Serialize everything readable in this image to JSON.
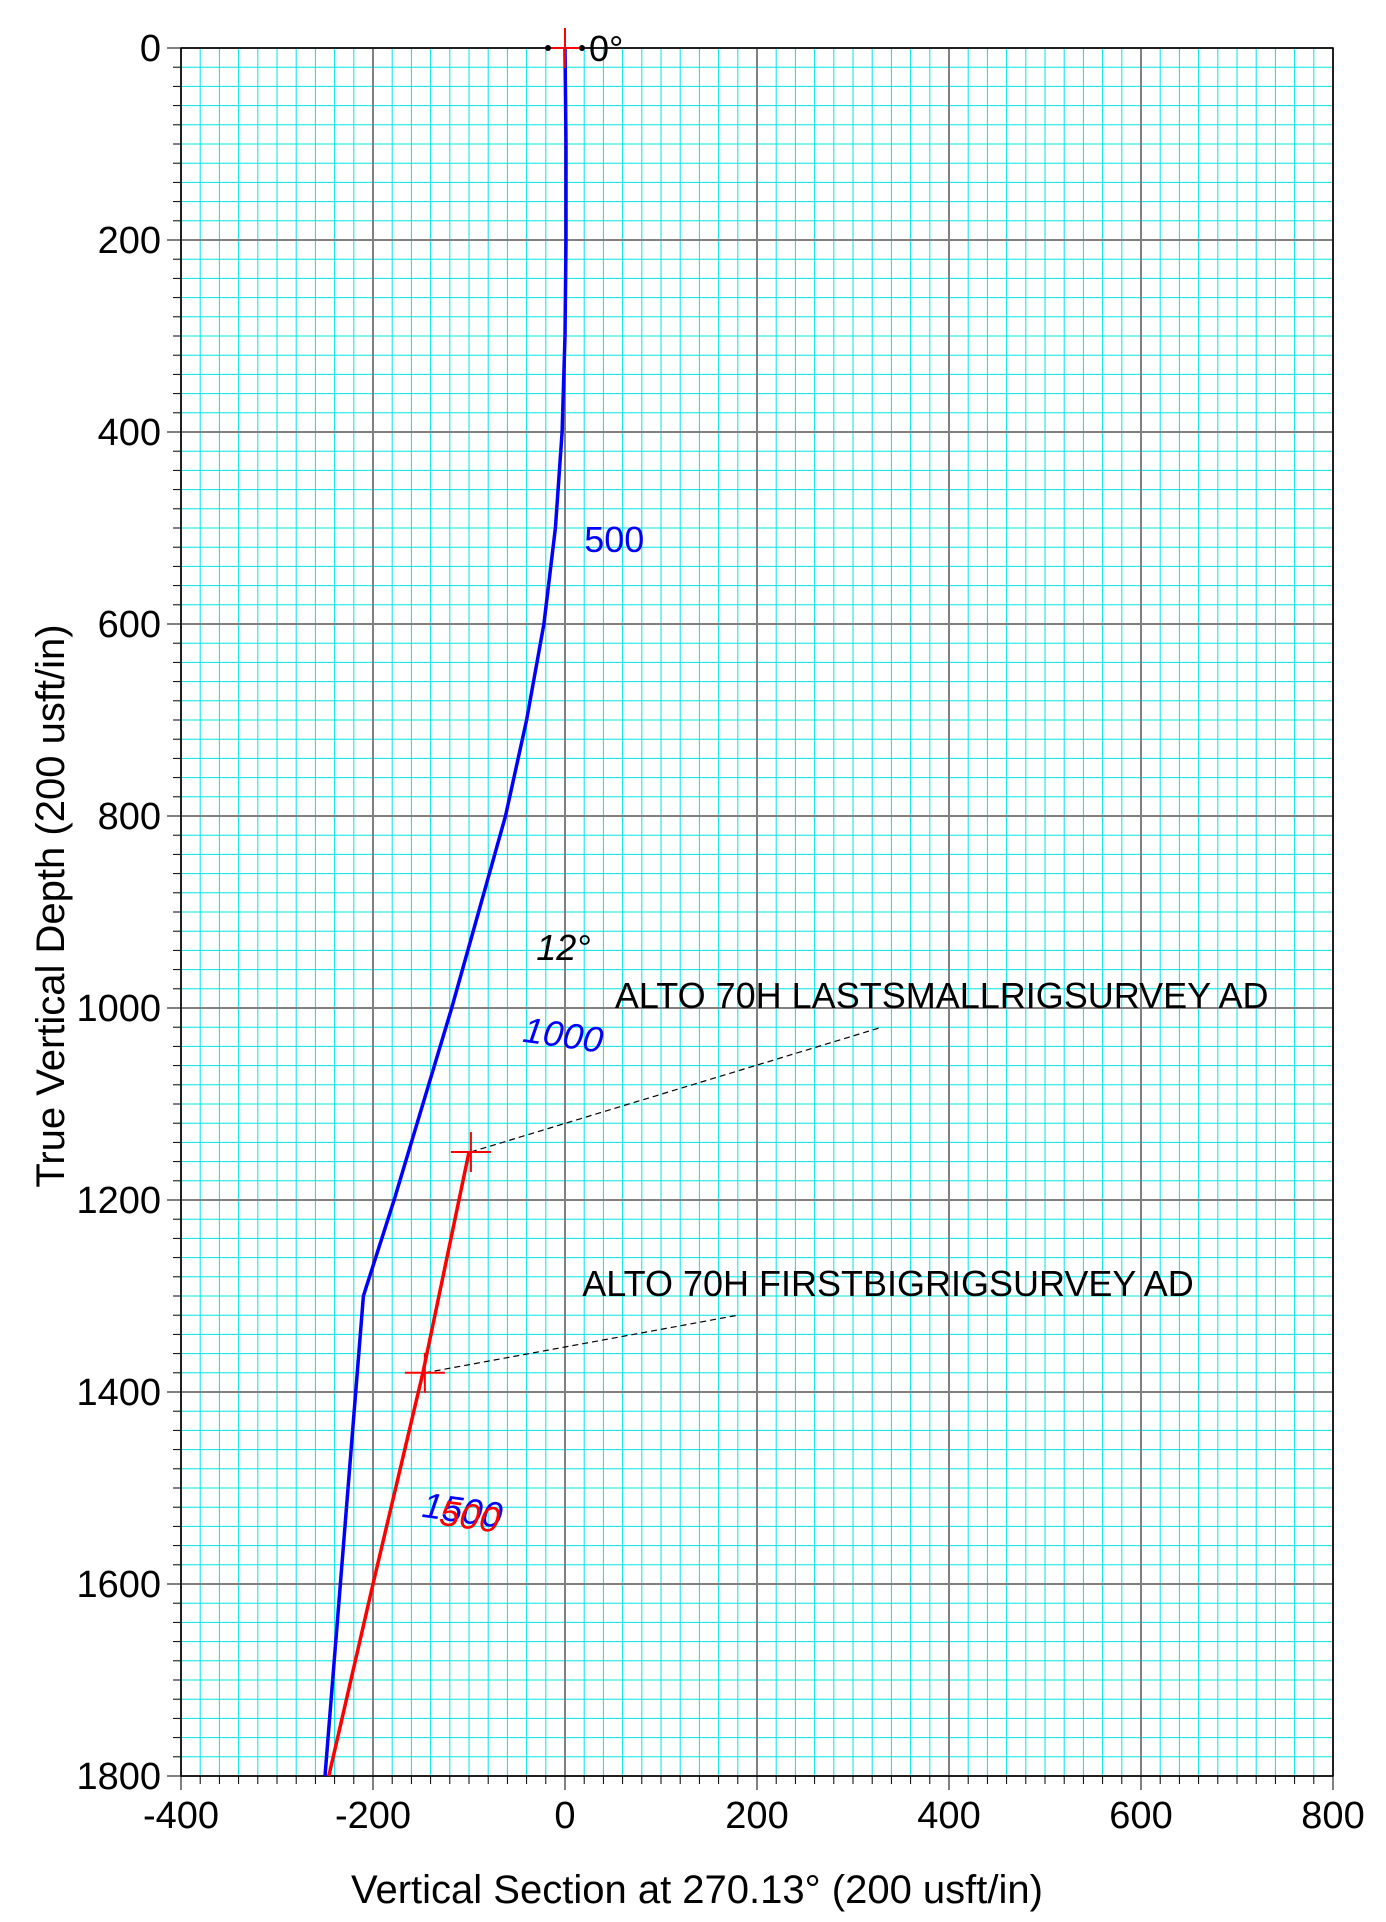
{
  "chart_data": {
    "type": "line",
    "xlabel": "Vertical Section at 270.13° (200 usft/in)",
    "ylabel": "True Vertical Depth (200 usft/in)",
    "xlim": [
      -400,
      800
    ],
    "ylim": [
      0,
      1800
    ],
    "y_inverted": true,
    "grid": true,
    "x_ticks": [
      "-400",
      "-200",
      "0",
      "200",
      "400",
      "600",
      "800"
    ],
    "y_ticks": [
      "0",
      "200",
      "400",
      "600",
      "800",
      "1000",
      "1200",
      "1400",
      "1600",
      "1800"
    ],
    "colors": {
      "minor_grid": "#00e5e5",
      "major_grid": "#808080",
      "series_blue": "#0000ff",
      "series_red": "#ff0000",
      "annotation": "#000000"
    },
    "series": [
      {
        "color": "#0000ff",
        "x": [
          0,
          1,
          1,
          0,
          -3,
          -10,
          -22,
          -40,
          -62,
          -90,
          -118,
          -148,
          -178,
          -210,
          -250
        ],
        "y": [
          0,
          100,
          200,
          300,
          400,
          500,
          600,
          700,
          800,
          900,
          1000,
          1100,
          1200,
          1300,
          1800
        ]
      },
      {
        "color": "#ff0000",
        "x": [
          -100,
          -148,
          -200,
          -246
        ],
        "y": [
          1150,
          1380,
          1600,
          1800
        ]
      }
    ],
    "depth_labels": [
      {
        "text": "500",
        "x": 20,
        "y": 525,
        "color": "#0000ff",
        "rotate": 0
      },
      {
        "text": "1000",
        "x": -45,
        "y": 1035,
        "color": "#0000ff",
        "rotate": 8
      },
      {
        "text": "1500",
        "x": -150,
        "y": 1530,
        "color": "#0000ff",
        "rotate": 8
      },
      {
        "text": "500",
        "x": -132,
        "y": 1538,
        "color": "#ff0000",
        "rotate": 8
      }
    ],
    "inclination_labels": [
      {
        "text": "0°",
        "x": 25,
        "y": 0
      },
      {
        "text": "12°",
        "x": -30,
        "y": 950
      }
    ],
    "markers": [
      {
        "x": 0,
        "y": 0
      },
      {
        "x": -98,
        "y": 1150
      },
      {
        "x": -146,
        "y": 1380
      }
    ],
    "annotations": [
      {
        "text": "ALTO 70H LASTSMALLRIGSURVEY AD",
        "target_x": -98,
        "target_y": 1150,
        "label_x": 330,
        "label_y": 1020,
        "text_x": 52,
        "text_y": 1000
      },
      {
        "text": "ALTO 70H FIRSTBIGRIGSURVEY AD",
        "target_x": -146,
        "target_y": 1380,
        "label_x": 180,
        "label_y": 1320,
        "text_x": 18,
        "text_y": 1300
      }
    ]
  }
}
